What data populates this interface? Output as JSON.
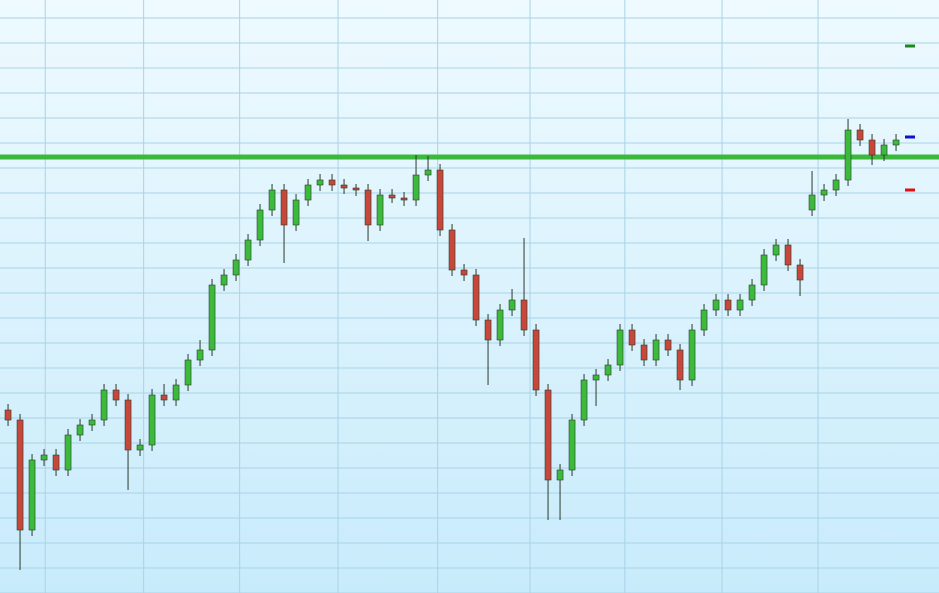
{
  "chart_data": {
    "type": "candlestick",
    "x": [
      0,
      1,
      2,
      3,
      4,
      5,
      6,
      7,
      8,
      9,
      10,
      11,
      12,
      13,
      14,
      15,
      16,
      17,
      18,
      19,
      20,
      21,
      22,
      23,
      24,
      25,
      26,
      27,
      28,
      29,
      30,
      31,
      32,
      33,
      34,
      35,
      36,
      37,
      38,
      39,
      40,
      41,
      42,
      43,
      44,
      45,
      46,
      47,
      48,
      49,
      50,
      51,
      52,
      53,
      54,
      55,
      56,
      57,
      58,
      59,
      60,
      61,
      62,
      63,
      64,
      65,
      66,
      67,
      68,
      69,
      70,
      71,
      72,
      73,
      74
    ],
    "open": [
      183,
      173,
      63,
      133,
      138,
      123,
      158,
      168,
      173,
      203,
      193,
      143,
      148,
      198,
      193,
      208,
      233,
      243,
      308,
      318,
      333,
      353,
      383,
      403,
      368,
      393,
      408,
      413,
      408,
      405,
      403,
      368,
      398,
      395,
      393,
      418,
      423,
      363,
      323,
      318,
      273,
      253,
      283,
      293,
      263,
      203,
      113,
      123,
      173,
      213,
      218,
      228,
      263,
      248,
      233,
      253,
      243,
      213,
      263,
      283,
      293,
      283,
      293,
      308,
      338,
      348,
      328,
      383,
      398,
      403,
      413,
      463,
      453,
      438,
      448
    ],
    "high": [
      189,
      179,
      139,
      144,
      144,
      164,
      174,
      179,
      209,
      209,
      199,
      154,
      204,
      209,
      214,
      239,
      253,
      314,
      324,
      339,
      359,
      389,
      409,
      409,
      399,
      414,
      419,
      419,
      414,
      409,
      409,
      404,
      404,
      401,
      438,
      437,
      429,
      369,
      329,
      324,
      279,
      289,
      304,
      355,
      269,
      209,
      129,
      179,
      219,
      224,
      234,
      269,
      269,
      254,
      259,
      259,
      249,
      269,
      289,
      299,
      299,
      299,
      314,
      344,
      354,
      354,
      334,
      422,
      409,
      419,
      474,
      469,
      459,
      454,
      459
    ],
    "low": [
      167,
      23,
      57,
      127,
      117,
      117,
      152,
      162,
      167,
      187,
      103,
      137,
      142,
      187,
      187,
      202,
      227,
      237,
      302,
      312,
      327,
      347,
      377,
      330,
      362,
      387,
      402,
      402,
      399,
      397,
      352,
      362,
      390,
      387,
      387,
      412,
      357,
      317,
      312,
      267,
      208,
      247,
      277,
      257,
      197,
      73,
      73,
      117,
      167,
      187,
      212,
      222,
      242,
      227,
      227,
      237,
      203,
      207,
      257,
      277,
      277,
      277,
      287,
      302,
      332,
      322,
      297,
      377,
      392,
      397,
      407,
      447,
      428,
      432,
      442
    ],
    "close": [
      173,
      63,
      133,
      138,
      123,
      158,
      168,
      173,
      203,
      193,
      143,
      148,
      198,
      193,
      208,
      233,
      243,
      308,
      318,
      333,
      353,
      383,
      403,
      368,
      393,
      408,
      413,
      408,
      405,
      403,
      368,
      398,
      395,
      393,
      418,
      423,
      363,
      323,
      318,
      273,
      253,
      283,
      293,
      263,
      203,
      113,
      123,
      173,
      213,
      218,
      228,
      263,
      248,
      233,
      253,
      243,
      213,
      263,
      283,
      293,
      283,
      293,
      308,
      338,
      348,
      328,
      313,
      398,
      403,
      413,
      463,
      453,
      438,
      448,
      453
    ],
    "up_color": "#3cba3c",
    "down_color": "#c8473b",
    "xlim": [
      -0.67,
      77.58
    ],
    "xticks": [
      3.1,
      11.3,
      19.3,
      27.5,
      35.8,
      43.5,
      51.4,
      59.5,
      67.5
    ],
    "ylim": [
      0,
      593
    ],
    "yticks": [
      0,
      25,
      50,
      75,
      100,
      125,
      150,
      175,
      200,
      225,
      250,
      275,
      300,
      325,
      350,
      375,
      400,
      425,
      450,
      475,
      500,
      525,
      550,
      575
    ],
    "grid": true,
    "level_lines": [
      {
        "value": 436,
        "color": "#3cb83c"
      }
    ],
    "markers": [
      {
        "value": 547,
        "color": "#1a8a1a"
      },
      {
        "value": 456,
        "color": "#1010d0"
      },
      {
        "value": 403,
        "color": "#e01010"
      }
    ]
  }
}
